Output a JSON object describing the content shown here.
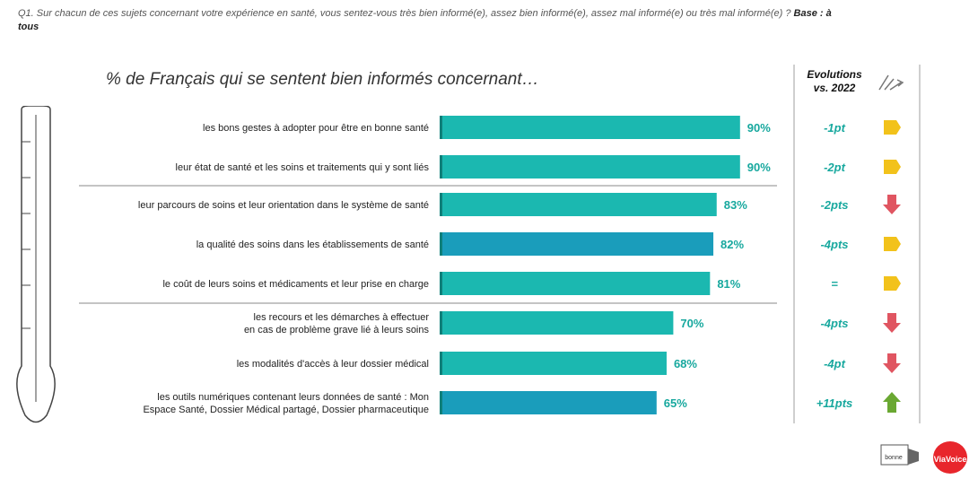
{
  "question": "Q1. Sur chacun de ces sujets concernant votre expérience en santé, vous sentez-vous très bien informé(e), assez bien informé(e), assez mal informé(e) ou très mal informé(e) ?",
  "base": "Base : à tous",
  "evolutions_header": "Evolutions vs. 2022",
  "footnote": "",
  "logo_right": "ViaVoice",
  "logo_left": "bonne",
  "chart_data": {
    "type": "bar",
    "orientation": "horizontal",
    "title": "% de Français qui se sentent bien informés concernant…",
    "xlabel": "",
    "ylabel": "",
    "xlim": [
      0,
      100
    ],
    "categories": [
      "les bons gestes à adopter pour être en bonne santé",
      "leur état de santé et les soins et traitements qui y sont liés",
      "leur parcours de soins et leur orientation dans le système de santé",
      "la qualité des soins dans les établissements de santé",
      "le coût de leurs soins et médicaments et leur prise en charge",
      "les recours et les démarches à effectuer en cas de problème grave lié à leurs soins",
      "les modalités d'accès à leur dossier médical",
      "les outils numériques contenant leurs données de santé : Mon Espace Santé, Dossier Médical partagé, Dossier pharmaceutique"
    ],
    "values": [
      90,
      90,
      83,
      82,
      81,
      70,
      68,
      65
    ],
    "value_labels": [
      "90%",
      "90%",
      "83%",
      "82%",
      "81%",
      "70%",
      "68%",
      "65%"
    ],
    "evolutions": [
      "-1pt",
      "-2pt",
      "-2pts",
      "-4pts",
      "=",
      "-4pts",
      "-4pt",
      "+11pts"
    ],
    "evolution_icons": [
      "neutral",
      "neutral",
      "down",
      "neutral",
      "neutral",
      "down",
      "down",
      "up"
    ],
    "separators_after": [
      1,
      4
    ],
    "colors": {
      "bar": "#1bb8b0",
      "bar_edge": "#0e7f79",
      "bar_alt": "#1a9dbb",
      "value_text": "#17a89e",
      "evol_text": "#17a89e",
      "neutral_icon": "#f2c21b",
      "down_icon": "#e05561",
      "up_icon": "#6aa832"
    }
  }
}
